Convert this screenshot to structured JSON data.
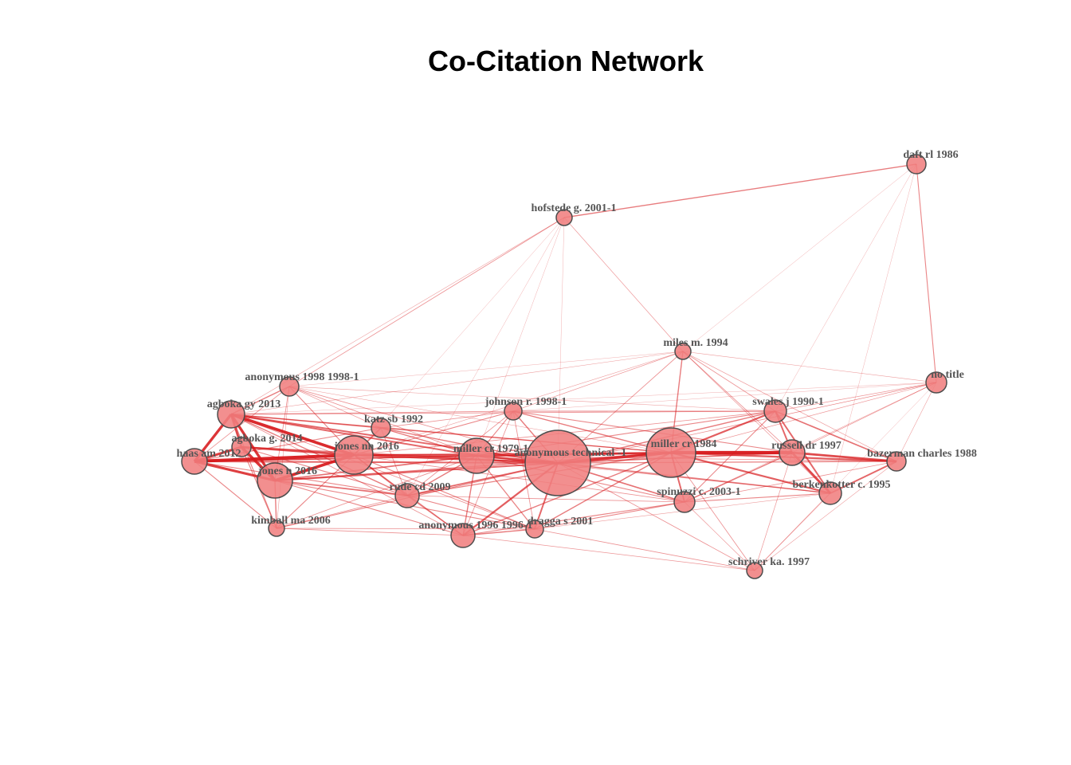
{
  "title": "Co-Citation Network",
  "colors": {
    "node_fill": "#f08080",
    "node_stroke": "#4d4d4d",
    "edge": "#d7191c",
    "label": "#555555"
  },
  "nodes": [
    {
      "id": "daft",
      "label": "daft rl 1986",
      "size": 1.2
    },
    {
      "id": "hofstede",
      "label": "hofstede g. 2001-1",
      "size": 1.0
    },
    {
      "id": "miles",
      "label": "miles m. 1994",
      "size": 1.0
    },
    {
      "id": "notitle",
      "label": "no title",
      "size": 1.3
    },
    {
      "id": "anon1998",
      "label": "anonymous 1998 1998-1",
      "size": 1.2
    },
    {
      "id": "agboka2013",
      "label": "agboka gy 2013",
      "size": 1.7
    },
    {
      "id": "johnson",
      "label": "johnson r. 1998-1",
      "size": 1.1
    },
    {
      "id": "swales",
      "label": "swales j 1990-1",
      "size": 1.4
    },
    {
      "id": "katz",
      "label": "katz sb 1992",
      "size": 1.2
    },
    {
      "id": "agboka2014",
      "label": "agboka g. 2014",
      "size": 1.2
    },
    {
      "id": "haas",
      "label": "haas am 2012",
      "size": 1.6
    },
    {
      "id": "jonesnn",
      "label": "jones nn 2016",
      "size": 2.4
    },
    {
      "id": "millercr1979",
      "label": "miller cr 1979-1",
      "size": 2.2
    },
    {
      "id": "anontech",
      "label": "anonymous technical -1",
      "size": 4.1
    },
    {
      "id": "millercr1984",
      "label": "miller cr 1984",
      "size": 3.1
    },
    {
      "id": "russell",
      "label": "russell dr 1997",
      "size": 1.6
    },
    {
      "id": "bazerman",
      "label": "bazerman charles 1988",
      "size": 1.2
    },
    {
      "id": "jonesn",
      "label": "jones n 2016",
      "size": 2.2
    },
    {
      "id": "rude",
      "label": "rude cd 2009",
      "size": 1.5
    },
    {
      "id": "berkenkotter",
      "label": "berkenkotter c. 1995",
      "size": 1.4
    },
    {
      "id": "spinuzzi",
      "label": "spinuzzi c. 2003-1",
      "size": 1.3
    },
    {
      "id": "kimball",
      "label": "kimball ma 2006",
      "size": 1.0
    },
    {
      "id": "anon1996",
      "label": "anonymous 1996 1996-1",
      "size": 1.5
    },
    {
      "id": "dragga",
      "label": "dragga s 2001",
      "size": 1.1
    },
    {
      "id": "schriver",
      "label": "schriver ka. 1997",
      "size": 1.0
    }
  ],
  "edges": [
    [
      "daft",
      "hofstede",
      1.0
    ],
    [
      "daft",
      "notitle",
      0.8
    ],
    [
      "daft",
      "miles",
      0.3
    ],
    [
      "daft",
      "swales",
      0.3
    ],
    [
      "daft",
      "berkenkotter",
      0.3
    ],
    [
      "hofstede",
      "miles",
      0.5
    ],
    [
      "hofstede",
      "anon1998",
      0.6
    ],
    [
      "hofstede",
      "agboka2013",
      0.4
    ],
    [
      "hofstede",
      "jonesnn",
      0.3
    ],
    [
      "hofstede",
      "anontech",
      0.3
    ],
    [
      "hofstede",
      "millercr1979",
      0.3
    ],
    [
      "hofstede",
      "rude",
      0.3
    ],
    [
      "miles",
      "notitle",
      0.4
    ],
    [
      "miles",
      "millercr1984",
      1.0
    ],
    [
      "miles",
      "swales",
      0.6
    ],
    [
      "miles",
      "russell",
      0.6
    ],
    [
      "miles",
      "anontech",
      0.6
    ],
    [
      "miles",
      "johnson",
      0.5
    ],
    [
      "miles",
      "jonesnn",
      0.4
    ],
    [
      "miles",
      "agboka2013",
      0.4
    ],
    [
      "miles",
      "bazerman",
      0.5
    ],
    [
      "miles",
      "berkenkotter",
      0.5
    ],
    [
      "miles",
      "anon1998",
      0.3
    ],
    [
      "notitle",
      "swales",
      0.5
    ],
    [
      "notitle",
      "russell",
      0.5
    ],
    [
      "notitle",
      "bazerman",
      0.4
    ],
    [
      "notitle",
      "millercr1984",
      0.5
    ],
    [
      "notitle",
      "anontech",
      0.4
    ],
    [
      "notitle",
      "spinuzzi",
      0.4
    ],
    [
      "notitle",
      "johnson",
      0.3
    ],
    [
      "notitle",
      "rude",
      0.3
    ],
    [
      "notitle",
      "agboka2013",
      0.3
    ],
    [
      "notitle",
      "schriver",
      0.3
    ],
    [
      "anon1998",
      "agboka2013",
      1.0
    ],
    [
      "anon1998",
      "jonesnn",
      0.8
    ],
    [
      "anon1998",
      "haas",
      0.6
    ],
    [
      "anon1998",
      "millercr1979",
      0.6
    ],
    [
      "anon1998",
      "anontech",
      0.6
    ],
    [
      "anon1998",
      "katz",
      0.5
    ],
    [
      "anon1998",
      "jonesn",
      0.6
    ],
    [
      "anon1998",
      "swales",
      0.4
    ],
    [
      "anon1998",
      "kimball",
      0.4
    ],
    [
      "anon1998",
      "millercr1984",
      0.4
    ],
    [
      "agboka2013",
      "agboka2014",
      2.0
    ],
    [
      "agboka2013",
      "haas",
      2.4
    ],
    [
      "agboka2013",
      "jonesnn",
      2.6
    ],
    [
      "agboka2013",
      "jonesn",
      2.4
    ],
    [
      "agboka2013",
      "katz",
      1.0
    ],
    [
      "agboka2013",
      "millercr1979",
      1.4
    ],
    [
      "agboka2013",
      "anontech",
      1.4
    ],
    [
      "agboka2013",
      "rude",
      1.0
    ],
    [
      "agboka2013",
      "kimball",
      0.8
    ],
    [
      "agboka2013",
      "millercr1984",
      0.9
    ],
    [
      "agboka2013",
      "swales",
      0.6
    ],
    [
      "agboka2013",
      "johnson",
      0.6
    ],
    [
      "agboka2013",
      "anon1996",
      0.6
    ],
    [
      "agboka2013",
      "dragga",
      0.6
    ],
    [
      "agboka2014",
      "haas",
      2.2
    ],
    [
      "agboka2014",
      "jonesnn",
      2.0
    ],
    [
      "agboka2014",
      "jonesn",
      2.4
    ],
    [
      "agboka2014",
      "kimball",
      0.8
    ],
    [
      "agboka2014",
      "rude",
      0.8
    ],
    [
      "agboka2014",
      "anontech",
      1.0
    ],
    [
      "haas",
      "jonesnn",
      2.8
    ],
    [
      "haas",
      "jonesn",
      2.2
    ],
    [
      "haas",
      "kimball",
      0.8
    ],
    [
      "haas",
      "millercr1979",
      1.2
    ],
    [
      "haas",
      "anontech",
      1.4
    ],
    [
      "haas",
      "rude",
      0.8
    ],
    [
      "haas",
      "katz",
      0.8
    ],
    [
      "haas",
      "millercr1984",
      0.9
    ],
    [
      "jonesnn",
      "jonesn",
      2.6
    ],
    [
      "jonesnn",
      "katz",
      1.2
    ],
    [
      "jonesnn",
      "millercr1979",
      1.6
    ],
    [
      "jonesnn",
      "anontech",
      1.8
    ],
    [
      "jonesnn",
      "rude",
      1.2
    ],
    [
      "jonesnn",
      "millercr1984",
      1.2
    ],
    [
      "jonesnn",
      "kimball",
      0.8
    ],
    [
      "jonesnn",
      "anon1996",
      0.8
    ],
    [
      "jonesnn",
      "dragga",
      0.8
    ],
    [
      "jonesnn",
      "johnson",
      0.8
    ],
    [
      "jonesnn",
      "swales",
      0.6
    ],
    [
      "jonesnn",
      "russell",
      0.6
    ],
    [
      "jonesnn",
      "spinuzzi",
      0.6
    ],
    [
      "jonesn",
      "kimball",
      1.0
    ],
    [
      "jonesn",
      "rude",
      1.2
    ],
    [
      "jonesn",
      "anontech",
      1.4
    ],
    [
      "jonesn",
      "millercr1979",
      1.2
    ],
    [
      "jonesn",
      "anon1996",
      0.8
    ],
    [
      "jonesn",
      "dragga",
      0.8
    ],
    [
      "jonesn",
      "millercr1984",
      1.0
    ],
    [
      "katz",
      "millercr1979",
      1.0
    ],
    [
      "katz",
      "anontech",
      1.0
    ],
    [
      "katz",
      "millercr1984",
      0.8
    ],
    [
      "katz",
      "johnson",
      0.6
    ],
    [
      "katz",
      "rude",
      0.6
    ],
    [
      "millercr1979",
      "anontech",
      2.0
    ],
    [
      "millercr1979",
      "millercr1984",
      1.6
    ],
    [
      "millercr1979",
      "johnson",
      0.8
    ],
    [
      "millercr1979",
      "rude",
      1.0
    ],
    [
      "millercr1979",
      "anon1996",
      1.0
    ],
    [
      "millercr1979",
      "dragga",
      0.9
    ],
    [
      "millercr1979",
      "swales",
      0.8
    ],
    [
      "millercr1979",
      "russell",
      0.8
    ],
    [
      "millercr1979",
      "spinuzzi",
      0.8
    ],
    [
      "millercr1979",
      "berkenkotter",
      0.6
    ],
    [
      "millercr1979",
      "bazerman",
      0.6
    ],
    [
      "millercr1979",
      "kimball",
      0.6
    ],
    [
      "anontech",
      "millercr1984",
      2.4
    ],
    [
      "anontech",
      "johnson",
      1.0
    ],
    [
      "anontech",
      "russell",
      1.2
    ],
    [
      "anontech",
      "swales",
      1.0
    ],
    [
      "anontech",
      "spinuzzi",
      1.2
    ],
    [
      "anontech",
      "berkenkotter",
      1.0
    ],
    [
      "anontech",
      "bazerman",
      0.9
    ],
    [
      "anontech",
      "rude",
      1.2
    ],
    [
      "anontech",
      "anon1996",
      1.6
    ],
    [
      "anontech",
      "dragga",
      1.4
    ],
    [
      "anontech",
      "kimball",
      0.8
    ],
    [
      "anontech",
      "schriver",
      0.6
    ],
    [
      "millercr1984",
      "russell",
      3.0
    ],
    [
      "millercr1984",
      "swales",
      1.6
    ],
    [
      "millercr1984",
      "bazerman",
      1.6
    ],
    [
      "millercr1984",
      "berkenkotter",
      1.6
    ],
    [
      "millercr1984",
      "spinuzzi",
      1.4
    ],
    [
      "millercr1984",
      "johnson",
      1.0
    ],
    [
      "millercr1984",
      "anon1996",
      1.0
    ],
    [
      "millercr1984",
      "dragga",
      1.0
    ],
    [
      "millercr1984",
      "rude",
      0.9
    ],
    [
      "millercr1984",
      "schriver",
      0.6
    ],
    [
      "russell",
      "swales",
      1.4
    ],
    [
      "russell",
      "bazerman",
      2.0
    ],
    [
      "russell",
      "berkenkotter",
      2.0
    ],
    [
      "russell",
      "spinuzzi",
      1.0
    ],
    [
      "russell",
      "johnson",
      0.8
    ],
    [
      "russell",
      "schriver",
      0.5
    ],
    [
      "swales",
      "bazerman",
      1.2
    ],
    [
      "swales",
      "berkenkotter",
      1.4
    ],
    [
      "swales",
      "johnson",
      0.8
    ],
    [
      "swales",
      "spinuzzi",
      0.8
    ],
    [
      "bazerman",
      "berkenkotter",
      1.4
    ],
    [
      "bazerman",
      "spinuzzi",
      0.6
    ],
    [
      "bazerman",
      "schriver",
      0.4
    ],
    [
      "berkenkotter",
      "spinuzzi",
      0.8
    ],
    [
      "berkenkotter",
      "schriver",
      0.6
    ],
    [
      "berkenkotter",
      "dragga",
      0.4
    ],
    [
      "spinuzzi",
      "schriver",
      0.5
    ],
    [
      "spinuzzi",
      "dragga",
      0.8
    ],
    [
      "spinuzzi",
      "anon1996",
      0.8
    ],
    [
      "spinuzzi",
      "rude",
      0.6
    ],
    [
      "johnson",
      "rude",
      0.6
    ],
    [
      "johnson",
      "anon1996",
      0.6
    ],
    [
      "johnson",
      "dragga",
      0.6
    ],
    [
      "rude",
      "anon1996",
      0.9
    ],
    [
      "rude",
      "dragga",
      0.8
    ],
    [
      "rude",
      "kimball",
      0.6
    ],
    [
      "kimball",
      "anon1996",
      0.6
    ],
    [
      "kimball",
      "dragga",
      0.6
    ],
    [
      "anon1996",
      "dragga",
      1.0
    ],
    [
      "anon1996",
      "schriver",
      0.5
    ],
    [
      "dragga",
      "schriver",
      0.6
    ]
  ]
}
